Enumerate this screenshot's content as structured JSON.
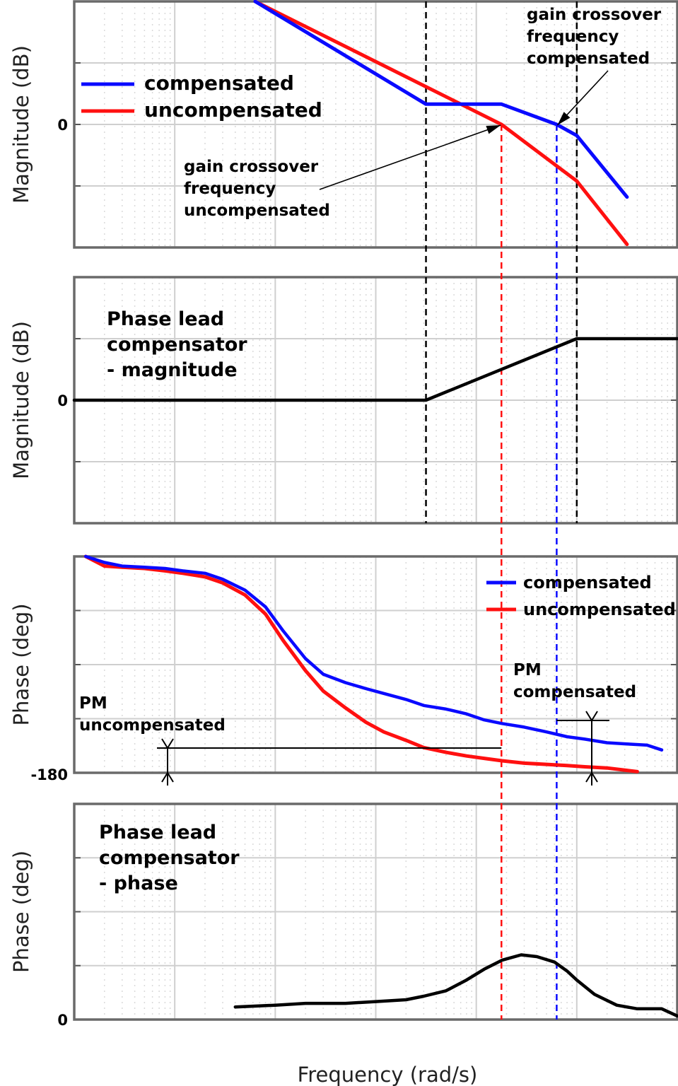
{
  "figure": {
    "xlabel": "Frequency  (rad/s)"
  },
  "colors": {
    "compensated": "#0a0aff",
    "uncompensated": "#ff1010",
    "compensator": "#000000",
    "grid": "#cfcfcf"
  },
  "chart_data": [
    {
      "type": "line",
      "panel": "magnitude-loop",
      "ylabel": "Magnitude (dB)",
      "ytick_labels": [
        "0"
      ],
      "xscale": "log",
      "xlim": [
        0.001,
        1000
      ],
      "ylim": [
        -2,
        2
      ],
      "grid": true,
      "legend": {
        "placement": "left",
        "entries": [
          "compensated",
          "uncompensated"
        ]
      },
      "series": [
        {
          "name": "compensated",
          "x": [
            0.0631,
            3.16,
            17.8,
            63.1,
            100,
            316
          ],
          "y": [
            2.0,
            0.33,
            0.33,
            0.0,
            -0.18,
            -1.18
          ]
        },
        {
          "name": "uncompensated",
          "x": [
            0.0631,
            17.8,
            100,
            316
          ],
          "y": [
            2.0,
            0.0,
            -0.92,
            -1.95
          ]
        }
      ],
      "annotations": [
        {
          "text": [
            "gain crossover",
            "frequency",
            "compensated"
          ]
        },
        {
          "text": [
            "gain crossover",
            "frequency",
            "uncompensated"
          ]
        }
      ]
    },
    {
      "type": "line",
      "panel": "magnitude-compensator",
      "title": [
        "Phase lead",
        "compensator",
        "- magnitude"
      ],
      "ylabel": "Magnitude (dB)",
      "ytick_labels": [
        "0"
      ],
      "xscale": "log",
      "xlim": [
        0.001,
        1000
      ],
      "ylim": [
        -2,
        2
      ],
      "grid": true,
      "series": [
        {
          "name": "compensator",
          "x": [
            0.001,
            3.16,
            100,
            1000
          ],
          "y": [
            0.0,
            0.0,
            1.0,
            1.0
          ]
        }
      ]
    },
    {
      "type": "line",
      "panel": "phase-loop",
      "ylabel": "Phase (deg)",
      "ytick_labels": [
        "-180"
      ],
      "xscale": "log",
      "xlim": [
        0.001,
        1000
      ],
      "ylim": [
        -180,
        0
      ],
      "grid": true,
      "legend": {
        "placement": "top-right",
        "entries": [
          "compensated",
          "uncompensated"
        ]
      },
      "series": [
        {
          "name": "compensated",
          "x": [
            0.0013,
            0.002,
            0.003,
            0.005,
            0.008,
            0.012,
            0.02,
            0.03,
            0.05,
            0.08,
            0.12,
            0.2,
            0.3,
            0.5,
            0.8,
            1.2,
            2.0,
            3.0,
            5.0,
            8.0,
            12,
            18,
            30,
            50,
            80,
            120,
            200,
            316,
            500,
            700
          ],
          "y": [
            0,
            -5,
            -8,
            -9,
            -10,
            -12,
            -14,
            -19,
            -28,
            -42,
            -62,
            -85,
            -98,
            -105,
            -110,
            -114,
            -119,
            -124,
            -127,
            -131,
            -136,
            -139,
            -142,
            -146,
            -150,
            -152,
            -155,
            -156,
            -157,
            -161
          ]
        },
        {
          "name": "uncompensated",
          "x": [
            0.0013,
            0.002,
            0.003,
            0.005,
            0.008,
            0.012,
            0.02,
            0.03,
            0.05,
            0.08,
            0.12,
            0.2,
            0.3,
            0.5,
            0.8,
            1.2,
            2.0,
            3.0,
            5.0,
            8.0,
            12,
            18,
            30,
            50,
            80,
            120,
            200,
            316,
            400
          ],
          "y": [
            0,
            -8,
            -9,
            -10,
            -12,
            -14,
            -17,
            -22,
            -32,
            -48,
            -70,
            -95,
            -112,
            -126,
            -138,
            -146,
            -153,
            -159,
            -163,
            -166,
            -168,
            -170,
            -172,
            -173,
            -174,
            -175,
            -176,
            -178,
            -179
          ]
        }
      ],
      "annotations": [
        {
          "text": [
            "PM",
            "compensated"
          ]
        },
        {
          "text": [
            "PM",
            "uncompensated"
          ]
        }
      ]
    },
    {
      "type": "line",
      "panel": "phase-compensator",
      "title": [
        "Phase lead",
        "compensator",
        "- phase"
      ],
      "ylabel": "Phase (deg)",
      "ytick_labels": [
        "0"
      ],
      "xscale": "log",
      "xlim": [
        0.001,
        1000
      ],
      "ylim": [
        0,
        60
      ],
      "grid": true,
      "series": [
        {
          "name": "compensator",
          "x": [
            0.04,
            0.1,
            0.2,
            0.5,
            1.0,
            2.0,
            3.0,
            5.0,
            8.0,
            12,
            18,
            28,
            40,
            60,
            80,
            100,
            150,
            250,
            400,
            700,
            1000
          ],
          "y": [
            3.5,
            4,
            4.5,
            4.5,
            5,
            5.5,
            6.5,
            8,
            11,
            14,
            16.5,
            18,
            17.5,
            16,
            13.5,
            11,
            7,
            4,
            3,
            3,
            1
          ]
        }
      ]
    }
  ]
}
